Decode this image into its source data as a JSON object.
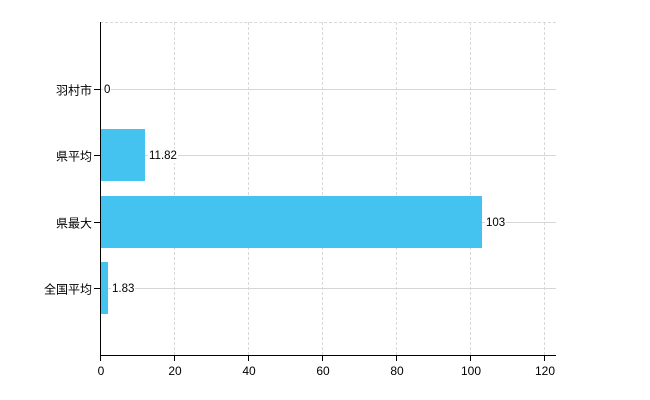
{
  "chart_data": {
    "type": "bar",
    "orientation": "horizontal",
    "title": "",
    "categories": [
      "羽村市",
      "県平均",
      "県最大",
      "全国平均"
    ],
    "values": [
      0,
      11.82,
      103,
      1.83
    ],
    "value_labels": [
      "0",
      "11.82",
      "103",
      "1.83"
    ],
    "x_ticks": [
      0,
      20,
      40,
      60,
      80,
      100,
      120
    ],
    "xlim": [
      0,
      123
    ],
    "grid": true,
    "legend": "none",
    "bar_color": "#44c2f0",
    "grid_color": "#d9d9d9",
    "axis_color": "#000000",
    "text_color": "#000000",
    "background_color": "#ffffff"
  }
}
